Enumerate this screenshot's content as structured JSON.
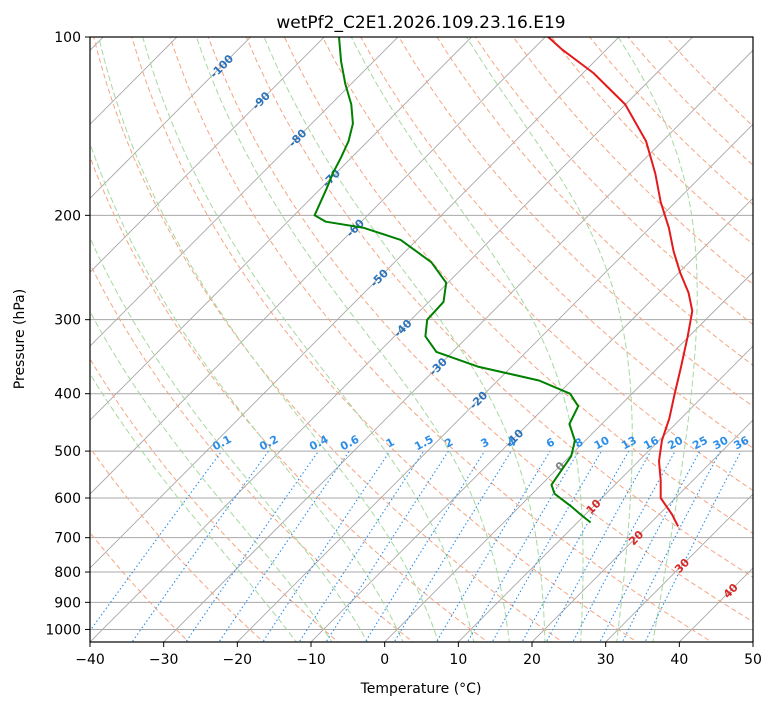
{
  "chart_data": {
    "type": "skew-t",
    "title": "wetPf2_C2E1.2026.109.23.16.E19",
    "xlabel": "Temperature (°C)",
    "ylabel": "Pressure (hPa)",
    "xlim": [
      -40,
      50
    ],
    "ylim_hpa": [
      1050,
      100
    ],
    "x_ticks": [
      -40,
      -30,
      -20,
      -10,
      0,
      10,
      20,
      30,
      40,
      50
    ],
    "y_ticks": [
      100,
      200,
      300,
      400,
      500,
      600,
      700,
      800,
      900,
      1000
    ],
    "grid": true,
    "temperature_profile": {
      "name": "Temperature",
      "color": "#e31a1c",
      "points": [
        [
          670,
          24.2
        ],
        [
          640,
          21.8
        ],
        [
          600,
          18.0
        ],
        [
          560,
          15.6
        ],
        [
          520,
          12.8
        ],
        [
          480,
          10.4
        ],
        [
          440,
          8.4
        ],
        [
          400,
          5.8
        ],
        [
          360,
          3.0
        ],
        [
          320,
          -0.2
        ],
        [
          290,
          -3.0
        ],
        [
          270,
          -6.0
        ],
        [
          250,
          -9.8
        ],
        [
          230,
          -13.6
        ],
        [
          210,
          -17.4
        ],
        [
          190,
          -22.0
        ],
        [
          170,
          -26.6
        ],
        [
          150,
          -32.2
        ],
        [
          130,
          -40.0
        ],
        [
          115,
          -48.6
        ],
        [
          105,
          -56.0
        ],
        [
          100,
          -59.6
        ]
      ]
    },
    "dewpoint_profile": {
      "name": "Dewpoint",
      "color": "#008000",
      "points": [
        [
          660,
          11.8
        ],
        [
          640,
          9.4
        ],
        [
          620,
          7.0
        ],
        [
          590,
          3.0
        ],
        [
          570,
          1.4
        ],
        [
          540,
          0.8
        ],
        [
          510,
          0.2
        ],
        [
          480,
          -1.4
        ],
        [
          450,
          -4.4
        ],
        [
          420,
          -5.6
        ],
        [
          400,
          -8.4
        ],
        [
          380,
          -14.4
        ],
        [
          360,
          -24.6
        ],
        [
          340,
          -32.2
        ],
        [
          320,
          -35.8
        ],
        [
          300,
          -37.8
        ],
        [
          280,
          -38.0
        ],
        [
          260,
          -40.2
        ],
        [
          240,
          -45.0
        ],
        [
          220,
          -52.2
        ],
        [
          210,
          -58.8
        ],
        [
          205,
          -64.8
        ],
        [
          200,
          -67.2
        ],
        [
          180,
          -69.2
        ],
        [
          170,
          -70.4
        ],
        [
          160,
          -71.4
        ],
        [
          150,
          -72.6
        ],
        [
          140,
          -74.4
        ],
        [
          130,
          -77.2
        ],
        [
          120,
          -80.8
        ],
        [
          110,
          -84.4
        ],
        [
          100,
          -88.0
        ]
      ]
    },
    "dry_adiabats_C": [
      -30,
      -20,
      -10,
      0,
      10,
      20,
      30,
      40,
      50,
      60,
      70,
      80,
      90,
      100,
      110,
      120,
      130,
      140,
      150,
      160,
      170
    ],
    "moist_adiabats_C": [
      -15,
      -10,
      -5,
      0,
      5,
      10,
      15,
      20,
      25,
      30,
      35
    ],
    "isotherms_C": [
      -200,
      -190,
      -180,
      -170,
      -160,
      -150,
      -140,
      -130,
      -120,
      -110,
      -100,
      -90,
      -80,
      -70,
      -60,
      -50,
      -40,
      -30,
      -20,
      -10,
      0,
      10,
      20,
      30,
      40,
      50
    ],
    "mixing_ratio_lines": [
      0.1,
      0.2,
      0.4,
      0.6,
      1,
      1.5,
      2,
      3,
      4,
      6,
      8,
      10,
      13,
      16,
      20,
      25,
      30,
      36
    ],
    "mixing_ratio_labels": [
      "0.1",
      "0.2",
      "0.4",
      "0.6",
      "1",
      "1.5",
      "2",
      "3",
      "4",
      "6",
      "8",
      "10",
      "13",
      "16",
      "20",
      "25",
      "30",
      "36"
    ],
    "isotherm_labels": [
      {
        "text": "-100",
        "temp": -100,
        "p": 112
      },
      {
        "text": "-90",
        "temp": -90,
        "p": 128
      },
      {
        "text": "-80",
        "temp": -80,
        "p": 148
      },
      {
        "text": "-70",
        "temp": -70,
        "p": 173
      },
      {
        "text": "-60",
        "temp": -60,
        "p": 210
      },
      {
        "text": "-50",
        "temp": -50,
        "p": 255
      },
      {
        "text": "-40",
        "temp": -40,
        "p": 310
      },
      {
        "text": "-30",
        "temp": -30,
        "p": 360
      },
      {
        "text": "-20",
        "temp": -20,
        "p": 410
      },
      {
        "text": "-10",
        "temp": -10,
        "p": 475
      },
      {
        "text": "0",
        "temp": 0,
        "p": 530
      },
      {
        "text": "10",
        "temp": 10,
        "p": 620
      },
      {
        "text": "20",
        "temp": 20,
        "p": 700
      },
      {
        "text": "30",
        "temp": 30,
        "p": 780
      },
      {
        "text": "40",
        "temp": 40,
        "p": 860
      }
    ],
    "colors": {
      "dry_adiabat": "#f4a582",
      "moist_adiabat": "#a6d8a0",
      "isotherm": "#a8a8a8",
      "isobar": "#a8a8a8",
      "mixing_ratio": "#2c8ee8",
      "label_cold": "#2c72b8",
      "label_zero": "#808080",
      "label_warm": "#d62728",
      "axis": "#000000"
    }
  }
}
